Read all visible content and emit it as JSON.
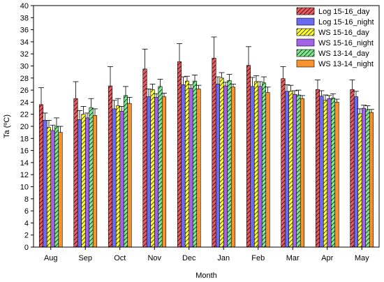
{
  "chart_data": {
    "type": "bar",
    "title": "",
    "xlabel": "Month",
    "ylabel": "Ta (ºC)",
    "ylim": [
      0,
      40
    ],
    "ytick_step": 2,
    "grid": false,
    "legend_position": "top-right",
    "categories": [
      "Aug",
      "Sep",
      "Oct",
      "Nov",
      "Dec",
      "Jan",
      "Feb",
      "Mar",
      "Apr",
      "May"
    ],
    "series": [
      {
        "name": "Log 15-16_day",
        "color": "#e9595e",
        "hatch": "diagonal",
        "values": [
          23.6,
          24.6,
          26.7,
          29.5,
          30.7,
          31.3,
          30.1,
          27.9,
          26.1,
          26.1
        ],
        "errors": [
          2.8,
          2.8,
          3.2,
          3.3,
          3.0,
          3.5,
          3.1,
          2.0,
          1.6,
          1.6
        ]
      },
      {
        "name": "Log 15-16_night",
        "color": "#6a6af0",
        "hatch": "none",
        "values": [
          21.0,
          21.1,
          22.9,
          24.9,
          26.9,
          27.0,
          26.6,
          25.8,
          25.0,
          24.9
        ],
        "errors": [
          1.2,
          1.5,
          1.4,
          1.3,
          1.3,
          1.2,
          1.5,
          1.1,
          0.9,
          0.9
        ]
      },
      {
        "name": "WS 15-16_day",
        "color": "#ffff2e",
        "hatch": "diagonal",
        "values": [
          19.8,
          22.0,
          23.4,
          26.1,
          27.5,
          28.0,
          27.4,
          25.8,
          24.3,
          22.1
        ],
        "errors": [
          1.2,
          1.3,
          1.2,
          0.9,
          0.8,
          0.9,
          1.0,
          1.0,
          0.9,
          0.8
        ]
      },
      {
        "name": "WS 15-16_night",
        "color": "#a262e6",
        "hatch": "none",
        "values": [
          19.3,
          21.4,
          22.5,
          24.8,
          26.3,
          26.7,
          26.6,
          25.3,
          24.6,
          23.0
        ],
        "errors": [
          0.9,
          0.8,
          0.8,
          0.6,
          0.6,
          0.6,
          0.8,
          0.6,
          0.5,
          0.5
        ]
      },
      {
        "name": "WS 13-14_day",
        "color": "#7ee88e",
        "hatch": "diagonal",
        "values": [
          20.0,
          23.1,
          25.1,
          26.6,
          27.5,
          27.6,
          27.2,
          25.2,
          24.7,
          22.8
        ],
        "errors": [
          1.4,
          1.5,
          1.5,
          1.2,
          1.0,
          1.0,
          1.0,
          0.8,
          0.7,
          0.6
        ]
      },
      {
        "name": "WS 13-14_night",
        "color": "#f7922e",
        "hatch": "none",
        "values": [
          19.0,
          21.8,
          23.8,
          24.9,
          26.2,
          26.5,
          25.6,
          24.6,
          24.0,
          22.3
        ],
        "errors": [
          1.0,
          1.1,
          1.0,
          0.6,
          0.6,
          0.5,
          0.9,
          0.5,
          0.5,
          0.5
        ]
      }
    ]
  }
}
